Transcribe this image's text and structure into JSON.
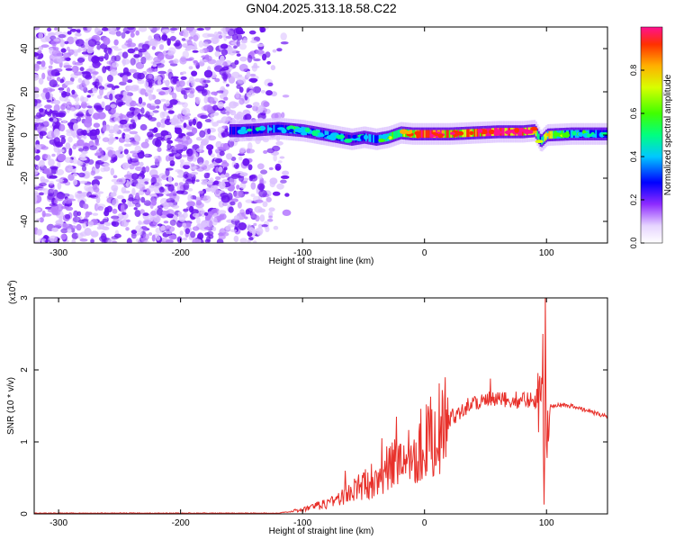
{
  "title": "GN04.2025.313.18.58.C22",
  "chart_data": [
    {
      "type": "heatmap",
      "xlabel": "Height of straight line (km)",
      "ylabel": "Frequency (Hz)",
      "xlim": [
        -320,
        150
      ],
      "ylim": [
        -50,
        50
      ],
      "xticks": [
        -300,
        -200,
        -100,
        0,
        100
      ],
      "yticks": [
        -40,
        -20,
        0,
        20,
        40
      ],
      "colorbar": {
        "label": "Normalized spectral amplitude",
        "range": [
          0,
          1
        ],
        "ticks": [
          "0.0",
          "0.2",
          "0.4",
          "0.6",
          "0.8"
        ],
        "colormap": [
          "#ffffff",
          "#dcc2ff",
          "#8e2bff",
          "#5a00e0",
          "#0000ff",
          "#00c8ff",
          "#00ff80",
          "#40ff00",
          "#d8ff00",
          "#ffb000",
          "#ff3000",
          "#ff1090"
        ]
      },
      "signal_band": {
        "x": [
          -150,
          -120,
          -100,
          -80,
          -60,
          -50,
          -40,
          -30,
          -20,
          -10,
          0,
          20,
          40,
          60,
          80,
          90,
          95,
          100,
          120,
          150
        ],
        "center_hz": [
          2,
          3,
          2,
          0,
          -2,
          -1,
          -2,
          -1,
          1,
          0.5,
          0.5,
          0.5,
          1,
          1.5,
          1.5,
          2,
          -3,
          0,
          0.5,
          0.5
        ],
        "amplitude": [
          0.35,
          0.4,
          0.4,
          0.38,
          0.35,
          0.35,
          0.45,
          0.5,
          0.6,
          0.75,
          0.9,
          0.85,
          0.85,
          0.9,
          0.95,
          0.8,
          0.5,
          0.7,
          0.45,
          0.35
        ]
      },
      "noise_region": {
        "x": [
          -320,
          -120
        ],
        "amplitude": [
          0.1,
          0.35
        ]
      }
    },
    {
      "type": "line",
      "xlabel": "Height of straight line (km)",
      "ylabel": "SNR (10 * v/v)",
      "multiplier_label": "(x10",
      "multiplier_exp": "4",
      "multiplier_close": ")",
      "xlim": [
        -320,
        150
      ],
      "ylim": [
        0,
        3
      ],
      "xticks": [
        -300,
        -200,
        -100,
        0,
        100
      ],
      "yticks": [
        0,
        1,
        2,
        3
      ],
      "color": "#e8302a",
      "envelope": {
        "x": [
          -320,
          -120,
          -110,
          -100,
          -90,
          -80,
          -70,
          -60,
          -50,
          -40,
          -30,
          -20,
          -10,
          0,
          10,
          20,
          30,
          40,
          50,
          60,
          70,
          80,
          90,
          95,
          100,
          102,
          110,
          120,
          130,
          140,
          150
        ],
        "y": [
          0.01,
          0.01,
          0.03,
          0.06,
          0.1,
          0.15,
          0.22,
          0.3,
          0.4,
          0.5,
          0.62,
          0.75,
          0.88,
          1.0,
          1.15,
          1.3,
          1.45,
          1.55,
          1.58,
          1.58,
          1.58,
          1.58,
          1.6,
          1.5,
          1.3,
          1.5,
          1.52,
          1.5,
          1.45,
          1.4,
          1.35
        ]
      },
      "peaks": [
        {
          "x": 54,
          "y": 1.88
        },
        {
          "x": 97,
          "y": 2.5
        },
        {
          "x": 99,
          "y": 3.05
        },
        {
          "x": 98,
          "y": 0.13
        },
        {
          "x": -65,
          "y": 0.6
        },
        {
          "x": -35,
          "y": 1.05
        },
        {
          "x": -23,
          "y": 1.35
        }
      ]
    }
  ]
}
